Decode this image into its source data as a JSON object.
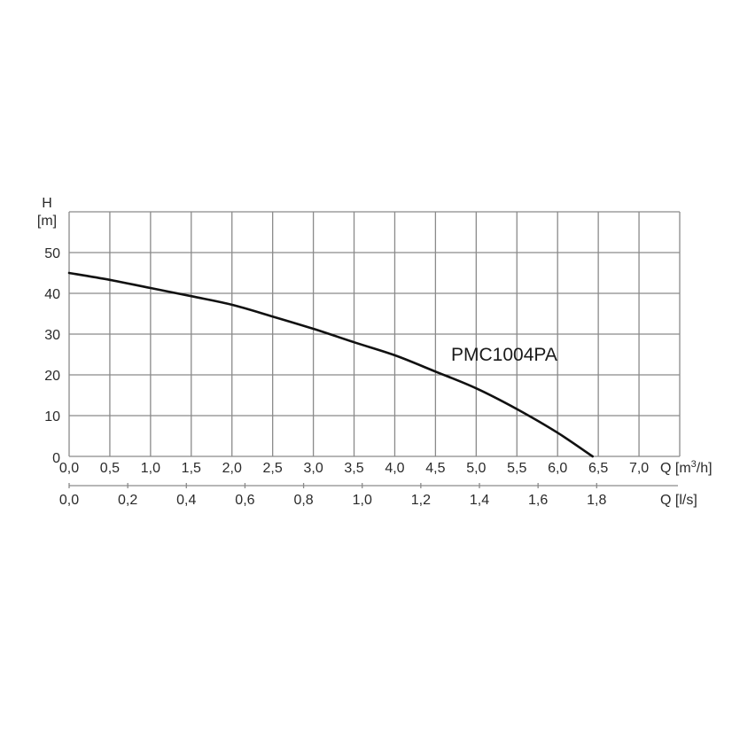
{
  "chart_data": {
    "type": "line",
    "title": "",
    "series": [
      {
        "name": "PMC1004PA",
        "x": [
          0.0,
          0.5,
          1.0,
          1.5,
          2.0,
          2.5,
          3.0,
          3.5,
          4.0,
          4.5,
          5.0,
          5.5,
          6.0,
          6.43
        ],
        "values": [
          45.0,
          43.3,
          41.3,
          39.3,
          37.2,
          34.3,
          31.3,
          28.0,
          24.8,
          20.8,
          16.7,
          11.6,
          5.8,
          0.0
        ]
      }
    ],
    "xlabel": "Q [m3/h]",
    "xlabel_secondary": "Q [l/s]",
    "ylabel": "H [m]",
    "xlim": [
      0,
      7.5
    ],
    "ylim": [
      0,
      60
    ],
    "grid": true,
    "legend": "inline label",
    "x_ticks": [
      "0,0",
      "0,5",
      "1,0",
      "1,5",
      "2,0",
      "2,5",
      "3,0",
      "3,5",
      "4,0",
      "4,5",
      "5,0",
      "5,5",
      "6,0",
      "6,5",
      "7,0"
    ],
    "x_tick_values": [
      0,
      0.5,
      1.0,
      1.5,
      2.0,
      2.5,
      3.0,
      3.5,
      4.0,
      4.5,
      5.0,
      5.5,
      6.0,
      6.5,
      7.0
    ],
    "x2_ticks": [
      "0,0",
      "0,2",
      "0,4",
      "0,6",
      "0,8",
      "1,0",
      "1,2",
      "1,4",
      "1,6",
      "1,8"
    ],
    "x2_tick_values_ls": [
      0,
      0.2,
      0.4,
      0.6,
      0.8,
      1.0,
      1.2,
      1.4,
      1.6,
      1.8
    ],
    "y_ticks": [
      "0",
      "10",
      "20",
      "30",
      "40",
      "50"
    ],
    "y_tick_values": [
      0,
      10,
      20,
      30,
      40,
      50
    ]
  },
  "labels": {
    "y_axis_symbol": "H",
    "y_axis_unit": "[m]",
    "x_axis_primary_symbol": "Q [m",
    "x_axis_primary_sup": "3",
    "x_axis_primary_rest": "/h]",
    "x_axis_secondary": "Q [l/s]",
    "series_name": "PMC1004PA"
  },
  "colors": {
    "grid": "#8a8a8a",
    "curve": "#111111",
    "text": "#2a2a2a"
  }
}
